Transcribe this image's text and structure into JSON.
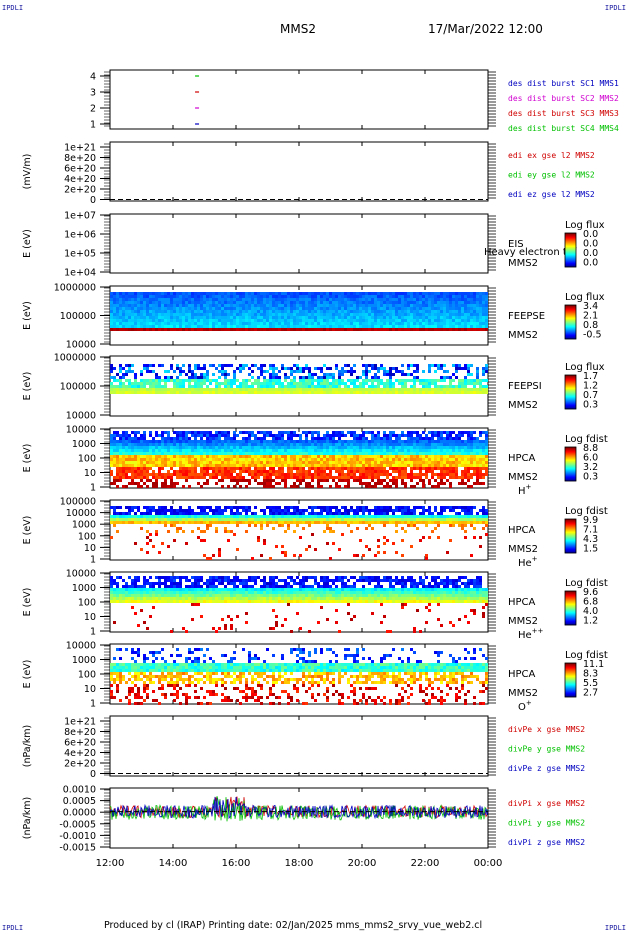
{
  "corners": {
    "tl": "IPDLI",
    "tr": "IPDLI",
    "bl": "IPDLI",
    "br": "IPDLI"
  },
  "header": {
    "spacecraft": "MMS2",
    "datetime": "17/Mar/2022 12:00"
  },
  "footer": {
    "text": "Produced by cl (IRAP)   Printing date: 02/Jan/2025   mms_mms2_srvy_vue_web2.cl"
  },
  "colors": {
    "red": "#d00000",
    "magenta": "#d000d0",
    "green": "#00c000",
    "blue": "#0000c0"
  },
  "chart_data": [
    {
      "type": "scatter",
      "id": "burst",
      "ylabel": "",
      "ylim": [
        0.5,
        4.5
      ],
      "yticks": [
        "4",
        "3",
        "2",
        "1"
      ],
      "labels": [
        {
          "text": "des dist burst SC1 MMS1",
          "color": "#0000c0"
        },
        {
          "text": "des dist burst SC2 MMS2",
          "color": "#d000d0"
        },
        {
          "text": "des dist burst SC3 MMS3",
          "color": "#d00000"
        },
        {
          "text": "des dist burst SC4 MMS4",
          "color": "#00c000"
        }
      ],
      "points": [
        {
          "x": "14:42",
          "y": 4,
          "color": "#00c000"
        },
        {
          "x": "14:42",
          "y": 3,
          "color": "#d00000"
        },
        {
          "x": "14:42",
          "y": 2,
          "color": "#d000d0"
        },
        {
          "x": "14:42",
          "y": 1,
          "color": "#0000c0"
        }
      ]
    },
    {
      "type": "line",
      "id": "edi",
      "ylabel": "(mV/m)",
      "yticks": [
        "1e+21",
        "8e+20",
        "6e+20",
        "4e+20",
        "2e+20",
        "0"
      ],
      "labels": [
        {
          "text": "edi ex gse l2 MMS2",
          "color": "#d00000"
        },
        {
          "text": "edi ey gse l2 MMS2",
          "color": "#00c000"
        },
        {
          "text": "edi ez gse l2 MMS2",
          "color": "#0000c0"
        }
      ]
    },
    {
      "type": "heatmap",
      "id": "eis",
      "ylabel": "E (eV)",
      "yticks": [
        "1e+07",
        "1e+06",
        "1e+05",
        "1e+04"
      ],
      "instrument": [
        "EIS",
        "MMS2"
      ],
      "overlay": "Heavy electron tof",
      "cbar": {
        "title": "Log flux",
        "ticks": [
          "0.0",
          "0.0",
          "0.0",
          "0.0"
        ]
      }
    },
    {
      "type": "heatmap",
      "id": "feepse",
      "ylabel": "E (eV)",
      "yticks": [
        "1000000",
        "100000",
        "10000"
      ],
      "instrument": [
        "FEEPSE",
        "MMS2"
      ],
      "cbar": {
        "title": "Log flux",
        "ticks": [
          "3.4",
          "2.1",
          "0.8",
          "-0.5"
        ]
      }
    },
    {
      "type": "heatmap",
      "id": "feepsi",
      "ylabel": "E (eV)",
      "yticks": [
        "1000000",
        "100000",
        "10000"
      ],
      "instrument": [
        "FEEPSI",
        "MMS2"
      ],
      "cbar": {
        "title": "Log flux",
        "ticks": [
          "1.7",
          "1.2",
          "0.7",
          "0.3"
        ]
      }
    },
    {
      "type": "heatmap",
      "id": "hpca_h",
      "ylabel": "E (eV)",
      "yticks": [
        "10000",
        "1000",
        "100",
        "10",
        "1"
      ],
      "instrument": [
        "HPCA",
        "MMS2"
      ],
      "species": "H",
      "charge": "+",
      "cbar": {
        "title": "Log fdist",
        "ticks": [
          "8.8",
          "6.0",
          "3.2",
          "0.3"
        ]
      }
    },
    {
      "type": "heatmap",
      "id": "hpca_he",
      "ylabel": "E (eV)",
      "yticks": [
        "100000",
        "10000",
        "1000",
        "100",
        "10",
        "1"
      ],
      "instrument": [
        "HPCA",
        "MMS2"
      ],
      "species": "He",
      "charge": "+",
      "cbar": {
        "title": "Log fdist",
        "ticks": [
          "9.9",
          "7.1",
          "4.3",
          "1.5"
        ]
      }
    },
    {
      "type": "heatmap",
      "id": "hpca_hepp",
      "ylabel": "E (eV)",
      "yticks": [
        "10000",
        "1000",
        "100",
        "10",
        "1"
      ],
      "instrument": [
        "HPCA",
        "MMS2"
      ],
      "species": "He",
      "charge": "++",
      "cbar": {
        "title": "Log fdist",
        "ticks": [
          "9.6",
          "6.8",
          "4.0",
          "1.2"
        ]
      }
    },
    {
      "type": "heatmap",
      "id": "hpca_o",
      "ylabel": "E (eV)",
      "yticks": [
        "10000",
        "1000",
        "100",
        "10",
        "1"
      ],
      "instrument": [
        "HPCA",
        "MMS2"
      ],
      "species": "O",
      "charge": "+",
      "cbar": {
        "title": "Log fdist",
        "ticks": [
          "11.1",
          "8.3",
          "5.5",
          "2.7"
        ]
      }
    },
    {
      "type": "line",
      "id": "divpe",
      "ylabel": "(nPa/km)",
      "yticks": [
        "1e+21",
        "8e+20",
        "6e+20",
        "4e+20",
        "2e+20",
        "0"
      ],
      "labels": [
        {
          "text": "divPe x gse MMS2",
          "color": "#d00000"
        },
        {
          "text": "divPe y gse MMS2",
          "color": "#00c000"
        },
        {
          "text": "divPe z gse MMS2",
          "color": "#0000c0"
        }
      ]
    },
    {
      "type": "line",
      "id": "divpi",
      "ylabel": "(nPa/km)",
      "yticks": [
        "0.0010",
        "0.0005",
        "0.0000",
        "-0.0005",
        "-0.0010",
        "-0.0015"
      ],
      "ylim": [
        -0.0017,
        0.0011
      ],
      "labels": [
        {
          "text": "divPi x gse MMS2",
          "color": "#d00000"
        },
        {
          "text": "divPi y gse MMS2",
          "color": "#00c000"
        },
        {
          "text": "divPi z gse MMS2",
          "color": "#0000c0"
        }
      ]
    }
  ],
  "xaxis": {
    "ticks": [
      "12:00",
      "14:00",
      "16:00",
      "18:00",
      "20:00",
      "22:00",
      "00:00"
    ],
    "range": [
      "12:00",
      "00:00"
    ]
  }
}
